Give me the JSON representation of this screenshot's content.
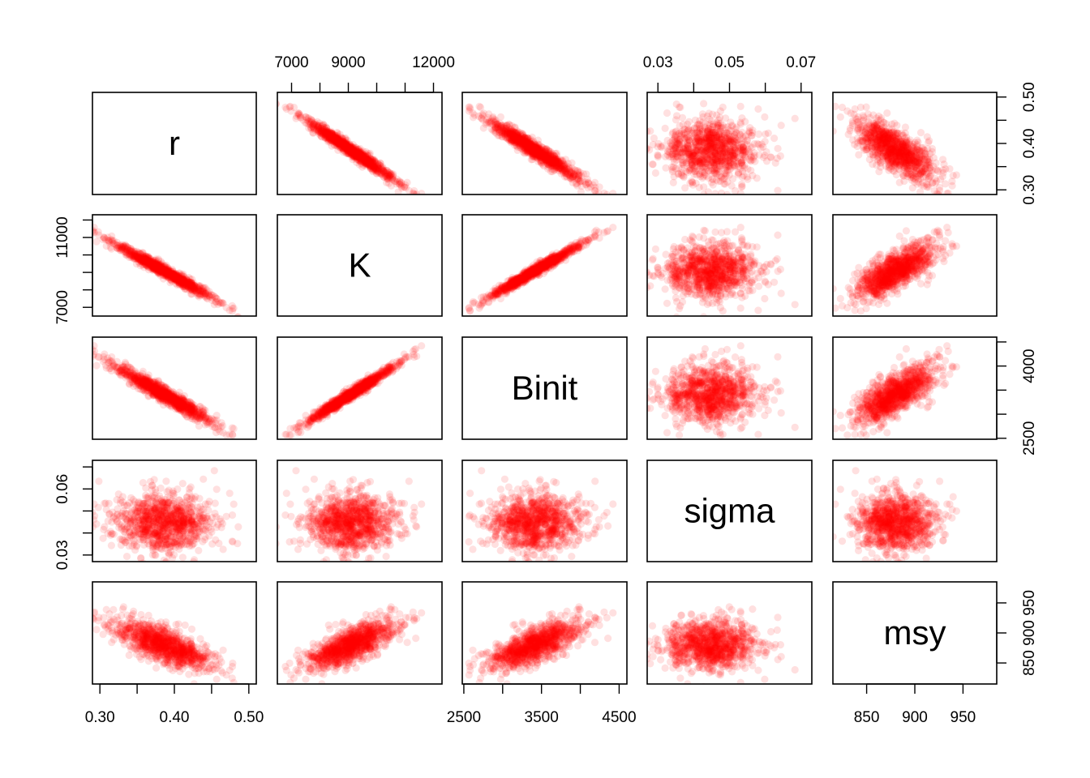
{
  "chart_data": {
    "type": "scatter",
    "matrix": "pairs",
    "variables": [
      "r",
      "K",
      "Binit",
      "sigma",
      "msy"
    ],
    "point_color": "#ff0000",
    "point_alpha": 0.12,
    "ranges": {
      "r": [
        0.29,
        0.51
      ],
      "K": [
        6500,
        12300
      ],
      "Binit": [
        2480,
        4600
      ],
      "sigma": [
        0.027,
        0.073
      ],
      "msy": [
        815,
        985
      ]
    },
    "axis_ticks": {
      "r": {
        "side": "bottom",
        "ticks": [
          0.3,
          0.35,
          0.4,
          0.45,
          0.5
        ],
        "labels": [
          "0.30",
          "0.40",
          "0.50"
        ],
        "label_values": [
          0.3,
          0.4,
          0.5
        ]
      },
      "K_top": {
        "side": "top",
        "ticks": [
          7000,
          8000,
          9000,
          10000,
          11000,
          12000
        ],
        "labels": [
          "7000",
          "9000",
          "12000"
        ],
        "label_values": [
          7000,
          9000,
          12000
        ]
      },
      "K_left": {
        "side": "left",
        "ticks": [
          7000,
          8000,
          9000,
          10000,
          11000,
          12000
        ],
        "labels": [
          "7000",
          "11000"
        ],
        "label_values": [
          7000,
          11000
        ]
      },
      "Binit_bottom": {
        "side": "bottom",
        "ticks": [
          2500,
          3000,
          3500,
          4000,
          4500
        ],
        "labels": [
          "2500",
          "3500",
          "4500"
        ],
        "label_values": [
          2500,
          3500,
          4500
        ]
      },
      "Binit_right": {
        "side": "right",
        "ticks": [
          2500,
          3000,
          3500,
          4000,
          4500
        ],
        "labels": [
          "2500",
          "4000"
        ],
        "label_values": [
          2500,
          4000
        ]
      },
      "sigma_top": {
        "side": "top",
        "ticks": [
          0.03,
          0.04,
          0.05,
          0.06,
          0.07
        ],
        "labels": [
          "0.03",
          "0.05",
          "0.07"
        ],
        "label_values": [
          0.03,
          0.05,
          0.07
        ]
      },
      "sigma_left": {
        "side": "left",
        "ticks": [
          0.03,
          0.04,
          0.05,
          0.06,
          0.07
        ],
        "labels": [
          "0.03",
          "0.06"
        ],
        "label_values": [
          0.03,
          0.06
        ]
      },
      "r_right": {
        "side": "right",
        "ticks": [
          0.3,
          0.35,
          0.4,
          0.45,
          0.5
        ],
        "labels": [
          "0.30",
          "0.40",
          "0.50"
        ],
        "label_values": [
          0.3,
          0.4,
          0.5
        ]
      },
      "msy_bottom": {
        "side": "bottom",
        "ticks": [
          850,
          900,
          950
        ],
        "labels": [
          "850",
          "900",
          "950"
        ],
        "label_values": [
          850,
          900,
          950
        ]
      },
      "msy_right": {
        "side": "right",
        "ticks": [
          850,
          900,
          950
        ],
        "labels": [
          "850",
          "900",
          "950"
        ],
        "label_values": [
          850,
          900,
          950
        ]
      }
    },
    "distribution": {
      "n": 1000,
      "means": {
        "r": 0.385,
        "K": 9100,
        "Binit": 3420,
        "sigma": 0.045,
        "msy": 880
      },
      "sds": {
        "r": 0.033,
        "K": 800,
        "Binit": 310,
        "sigma": 0.0065,
        "msy": 21
      },
      "correlations": {
        "r_K": -0.98,
        "r_Binit": -0.97,
        "r_msy": -0.55,
        "K_Binit": 0.98,
        "K_msy": 0.72,
        "Binit_msy": 0.7,
        "sigma_r": 0.0,
        "sigma_K": 0.0,
        "sigma_Binit": 0.0,
        "sigma_msy": 0.0
      }
    }
  }
}
